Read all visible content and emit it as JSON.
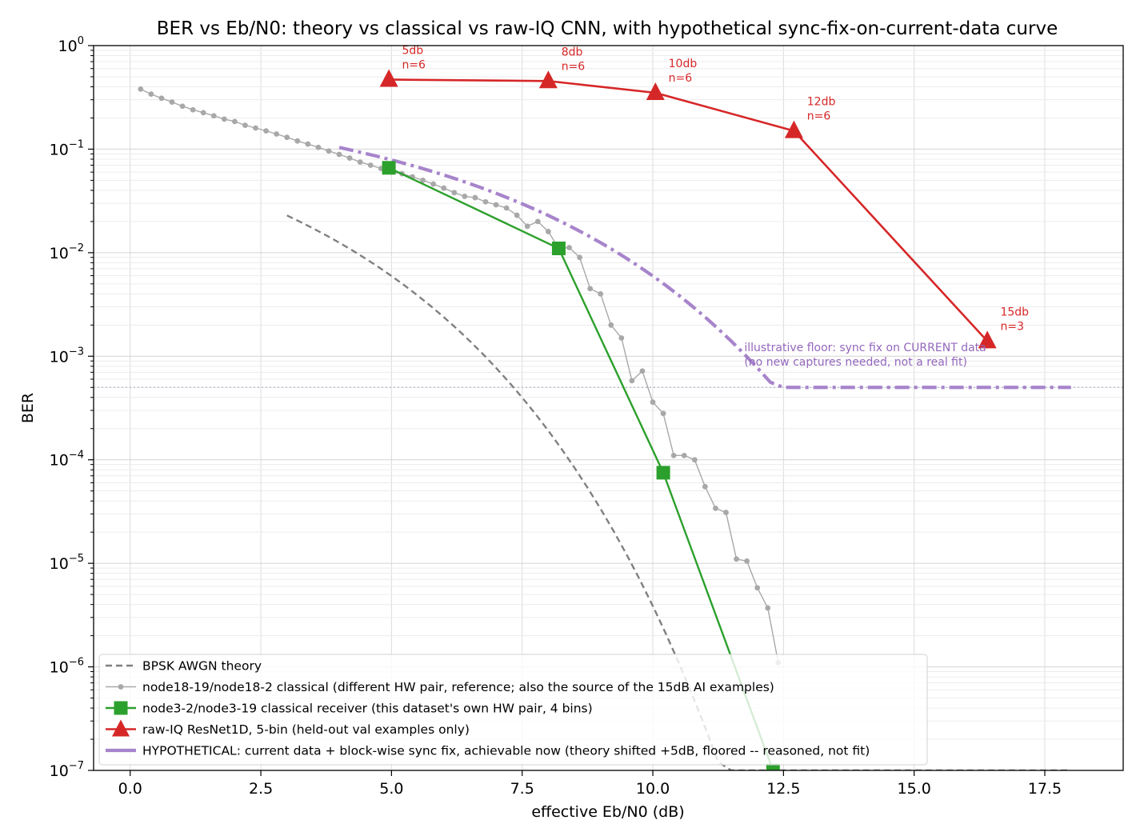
{
  "chart_data": {
    "type": "line",
    "title": "BER vs Eb/N0: theory vs classical vs raw-IQ CNN, with hypothetical sync-fix-on-current-data curve",
    "xlabel": "effective Eb/N0 (dB)",
    "ylabel": "BER",
    "xlim": [
      -0.7,
      19.0
    ],
    "ylim": [
      1e-07,
      1
    ],
    "yscale": "log",
    "grid": "both (major and minor)",
    "legend_position": "lower-left",
    "x_ticks": [
      0.0,
      2.5,
      5.0,
      7.5,
      10.0,
      12.5,
      15.0,
      17.5
    ],
    "x_tick_labels": [
      "0.0",
      "2.5",
      "5.0",
      "7.5",
      "10.0",
      "12.5",
      "15.0",
      "17.5"
    ],
    "y_ticks": [
      {
        "value": 1,
        "base": "10",
        "exp": "0"
      },
      {
        "value": 0.1,
        "base": "10",
        "exp": "−1"
      },
      {
        "value": 0.01,
        "base": "10",
        "exp": "−2"
      },
      {
        "value": 0.001,
        "base": "10",
        "exp": "−3"
      },
      {
        "value": 0.0001,
        "base": "10",
        "exp": "−4"
      },
      {
        "value": 1e-05,
        "base": "10",
        "exp": "−5"
      },
      {
        "value": 1e-06,
        "base": "10",
        "exp": "−6"
      },
      {
        "value": 1e-07,
        "base": "10",
        "exp": "−7"
      }
    ],
    "reference_line": {
      "y": 0.0005,
      "style": "dotted",
      "color": "#b0b0c8"
    },
    "series": [
      {
        "name": "BPSK AWGN theory",
        "style": "dashed",
        "color": "#808080",
        "x_start": 3.0,
        "x_end": 18.0,
        "x_step": 0.25,
        "floor": 1e-07
      },
      {
        "name": "node18-19/node18-2 classical (different HW pair, reference; also the source of the 15dB AI examples)",
        "style": "solid-dots",
        "color": "#a8a8a8",
        "x": [
          0.2,
          0.4,
          0.6,
          0.8,
          1.0,
          1.2,
          1.4,
          1.6,
          1.8,
          2.0,
          2.2,
          2.4,
          2.6,
          2.8,
          3.0,
          3.2,
          3.4,
          3.6,
          3.8,
          4.0,
          4.2,
          4.4,
          4.6,
          4.8,
          5.0,
          5.2,
          5.4,
          5.6,
          5.8,
          6.0,
          6.2,
          6.4,
          6.6,
          6.8,
          7.0,
          7.2,
          7.4,
          7.6,
          7.8,
          8.0,
          8.2,
          8.4,
          8.6,
          8.8,
          9.0,
          9.2,
          9.4,
          9.6,
          9.8,
          10.0,
          10.2,
          10.4,
          10.6,
          10.8,
          11.0,
          11.2,
          11.4,
          11.6,
          11.8,
          12.0,
          12.2,
          12.4
        ],
        "y": [
          0.38,
          0.34,
          0.31,
          0.285,
          0.26,
          0.24,
          0.225,
          0.21,
          0.195,
          0.185,
          0.17,
          0.16,
          0.15,
          0.14,
          0.13,
          0.12,
          0.112,
          0.104,
          0.096,
          0.089,
          0.082,
          0.075,
          0.07,
          0.065,
          0.06,
          0.058,
          0.054,
          0.05,
          0.046,
          0.042,
          0.038,
          0.035,
          0.034,
          0.031,
          0.029,
          0.027,
          0.023,
          0.018,
          0.02,
          0.016,
          0.011,
          0.0112,
          0.009,
          0.0045,
          0.004,
          0.002,
          0.0015,
          0.00058,
          0.00072,
          0.00036,
          0.00028,
          0.00011,
          0.00011,
          0.0001,
          5.5e-05,
          3.4e-05,
          3.1e-05,
          1.1e-05,
          1.05e-05,
          5.8e-06,
          3.7e-06,
          1.1e-06
        ]
      },
      {
        "name": "node3-2/node3-19 classical receiver (this dataset's own HW pair, 4 bins)",
        "style": "solid-squares",
        "color": "#2ca02c",
        "x": [
          4.95,
          8.2,
          10.2,
          12.3
        ],
        "y": [
          0.066,
          0.011,
          7.5e-05,
          1e-07
        ]
      },
      {
        "name": "raw-IQ ResNet1D, 5-bin (held-out val examples only)",
        "style": "solid-triangles",
        "color": "#d62728",
        "x": [
          4.95,
          8.0,
          10.05,
          12.7,
          16.4
        ],
        "y": [
          0.47,
          0.455,
          0.35,
          0.15,
          0.0014
        ]
      },
      {
        "name": "HYPOTHETICAL: current data + block-wise sync fix, achievable now (theory shifted +5dB, floored -- reasoned, not fit)",
        "style": "dash-dot",
        "color": "#a784cb",
        "x_start": 4.0,
        "x_end": 18.0,
        "x_step": 0.25,
        "shift_db": 5,
        "floor": 0.0005
      }
    ],
    "annotations": [
      {
        "x": 5.2,
        "y": 0.47,
        "line1": "5db",
        "line2": "n=6"
      },
      {
        "x": 8.25,
        "y": 0.455,
        "line1": "8db",
        "line2": "n=6"
      },
      {
        "x": 10.3,
        "y": 0.35,
        "line1": "10db",
        "line2": "n=6"
      },
      {
        "x": 12.95,
        "y": 0.15,
        "line1": "12db",
        "line2": "n=6"
      },
      {
        "x": 16.65,
        "y": 0.0014,
        "line1": "15db",
        "line2": "n=3"
      }
    ],
    "floor_note": {
      "x": 11.75,
      "y": 0.00095,
      "line1": "illustrative floor: sync fix on CURRENT data",
      "line2": "(no new captures needed, not a real fit)"
    }
  }
}
